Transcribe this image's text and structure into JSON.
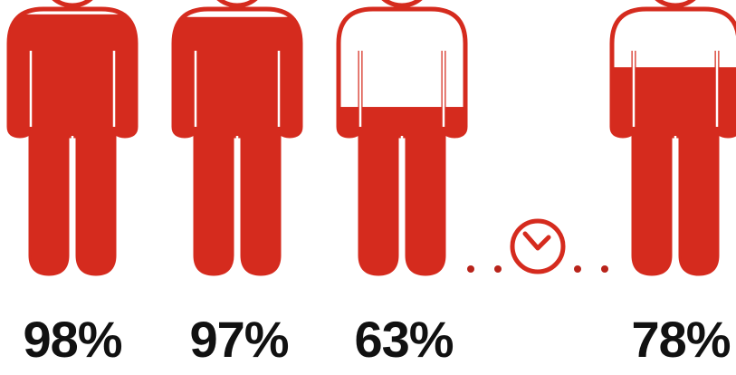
{
  "colors": {
    "figure": "#d52b1e",
    "outline": "#ffffff",
    "dots": "#b8231a",
    "text": "#111111"
  },
  "figures": [
    {
      "label": "98%",
      "fill_fraction": 0.98
    },
    {
      "label": "97%",
      "fill_fraction": 0.97
    },
    {
      "label": "63%",
      "fill_fraction": 0.63
    },
    {
      "label": "78%",
      "fill_fraction": 0.78
    }
  ],
  "connector": {
    "icon": "clock-icon",
    "dot_count": 4
  }
}
